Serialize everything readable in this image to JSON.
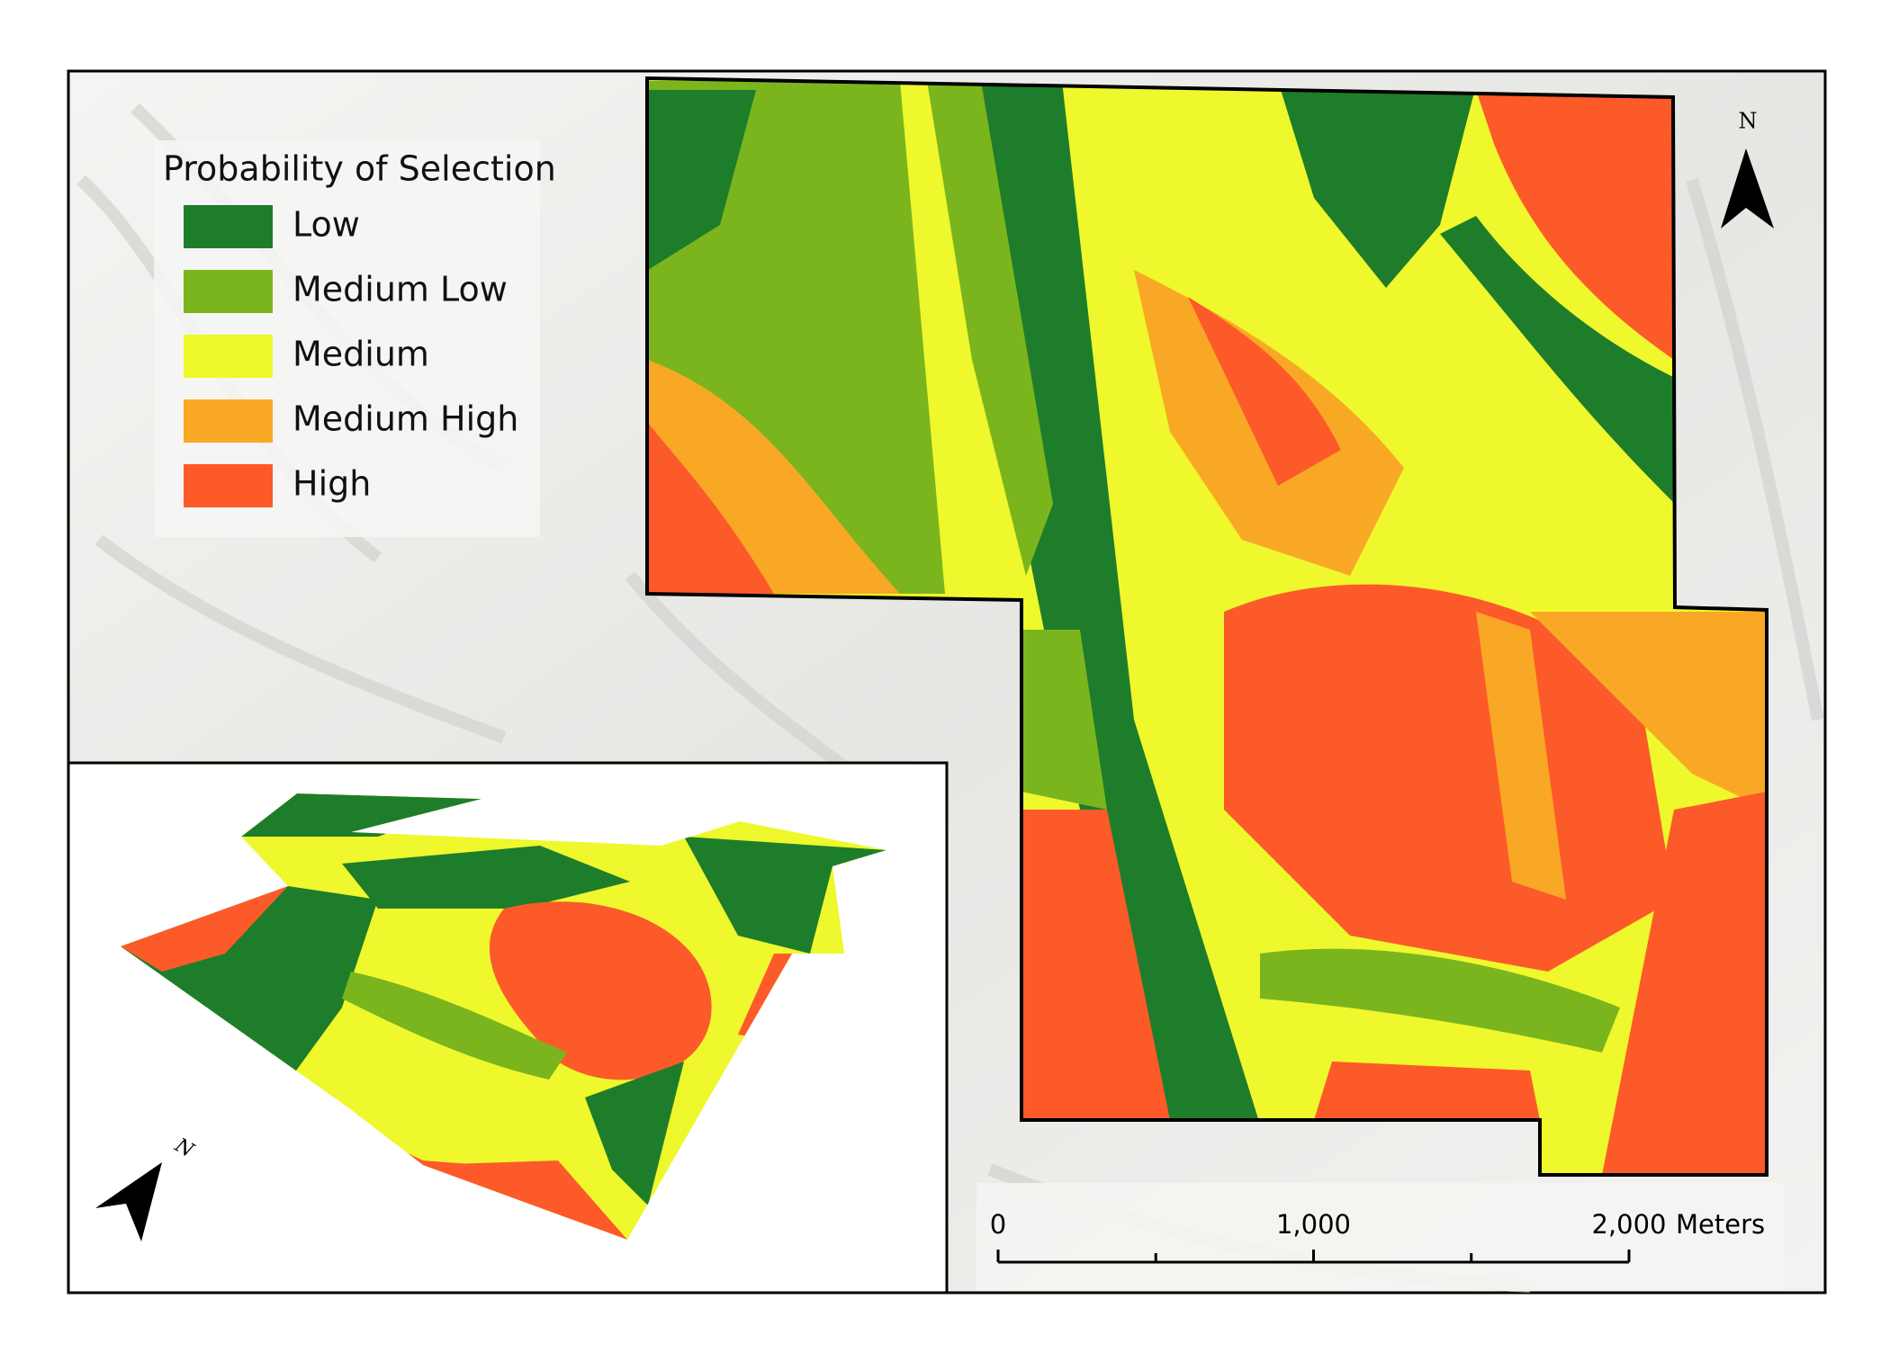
{
  "legend": {
    "title": "Probability of Selection",
    "items": [
      {
        "label": "Low",
        "color": "#1e7d2a"
      },
      {
        "label": "Medium Low",
        "color": "#7bb51e"
      },
      {
        "label": "Medium",
        "color": "#eef82c"
      },
      {
        "label": "Medium High",
        "color": "#f9a825"
      },
      {
        "label": "High",
        "color": "#fd5a2a"
      }
    ]
  },
  "scale_bar": {
    "ticks": [
      {
        "value": 0,
        "label": "0"
      },
      {
        "value": 1000,
        "label": "1,000"
      },
      {
        "value": 2000,
        "label": "2,000"
      }
    ],
    "unit": "Meters"
  },
  "north_arrow": {
    "label": "N"
  },
  "inset": {
    "north_arrow": {
      "label": "N"
    }
  }
}
